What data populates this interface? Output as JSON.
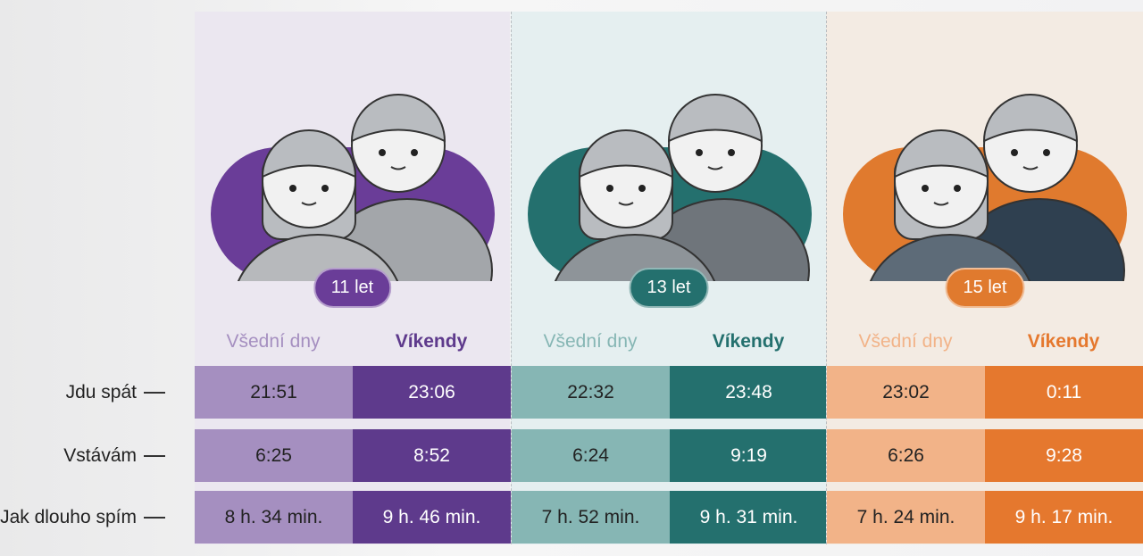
{
  "row_labels": [
    "Jdu spát",
    "Vstávám",
    "Jak dlouho spím"
  ],
  "groups": [
    {
      "age": "11 let",
      "weekday_label": "Všední dny",
      "weekend_label": "Víkendy",
      "weekday": [
        "21:51",
        "6:25",
        "8 h. 34 min."
      ],
      "weekend": [
        "23:06",
        "8:52",
        "9 h. 46 min."
      ],
      "colors": {
        "light": "#a58fc0",
        "dark": "#5e3a8c",
        "badge": "#6a3d98",
        "blob": "#6a3d98"
      }
    },
    {
      "age": "13 let",
      "weekday_label": "Všední dny",
      "weekend_label": "Víkendy",
      "weekday": [
        "22:32",
        "6:24",
        "7 h. 52 min."
      ],
      "weekend": [
        "23:48",
        "9:19",
        "9 h. 31 min."
      ],
      "colors": {
        "light": "#86b6b4",
        "dark": "#24706e",
        "badge": "#24706e",
        "blob": "#24706e"
      }
    },
    {
      "age": "15 let",
      "weekday_label": "Všední dny",
      "weekend_label": "Víkendy",
      "weekday": [
        "23:02",
        "6:26",
        "7 h. 24 min."
      ],
      "weekend": [
        "0:11",
        "9:28",
        "9 h. 17 min."
      ],
      "colors": {
        "light": "#f2b388",
        "dark": "#e5782e",
        "badge": "#e07a2e",
        "blob": "#e07a2e"
      }
    }
  ]
}
